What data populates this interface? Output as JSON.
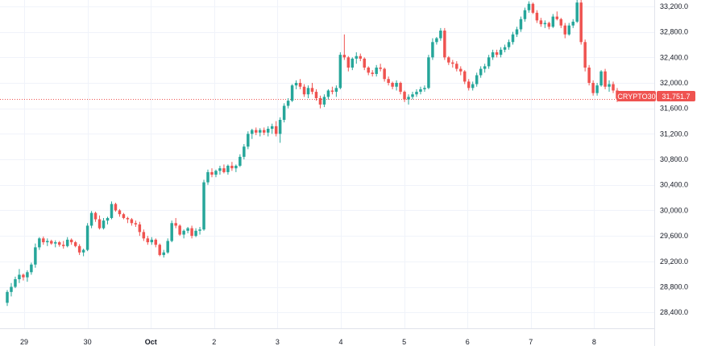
{
  "chart_data": {
    "type": "candlestick",
    "title": "",
    "xlabel": "",
    "ylabel": "",
    "ylim": [
      28150,
      33300
    ],
    "y_ticks": [
      "33,200.0",
      "32,800.0",
      "32,400.0",
      "32,000.0",
      "31,600.0",
      "31,200.0",
      "30,800.0",
      "30,400.0",
      "30,000.0",
      "29,600.0",
      "29,200.0",
      "28,800.0",
      "28,400.0"
    ],
    "y_tick_values": [
      33200,
      32800,
      32400,
      32000,
      31600,
      31200,
      30800,
      30400,
      30000,
      29600,
      29200,
      28800,
      28400
    ],
    "x_ticks": [
      "29",
      "30",
      "Oct",
      "2",
      "3",
      "4",
      "5",
      "6",
      "7",
      "8"
    ],
    "x_range": [
      0,
      9.9
    ],
    "grid": true,
    "colors": {
      "up": "#26a69a",
      "down": "#ef5350",
      "grid": "#f0f3fa",
      "last_price_line": "#ef5350"
    },
    "last_price": {
      "symbol": "CRYPTO30",
      "value": 31751.7,
      "label": "31,751.7"
    },
    "series": [
      {
        "ohlc": [
          [
            28550,
            28750,
            28500,
            28720
          ],
          [
            28720,
            28860,
            28650,
            28800
          ],
          [
            28800,
            28960,
            28780,
            28920
          ],
          [
            28920,
            29080,
            28860,
            28990
          ],
          [
            28990,
            29010,
            28900,
            28950
          ],
          [
            28950,
            29060,
            28880,
            29030
          ],
          [
            29030,
            29180,
            28990,
            29150
          ],
          [
            29150,
            29480,
            29100,
            29420
          ],
          [
            29420,
            29580,
            29380,
            29560
          ],
          [
            29560,
            29590,
            29460,
            29500
          ],
          [
            29500,
            29560,
            29440,
            29520
          ],
          [
            29520,
            29540,
            29460,
            29480
          ],
          [
            29480,
            29530,
            29420,
            29500
          ],
          [
            29500,
            29520,
            29430,
            29460
          ],
          [
            29460,
            29520,
            29400,
            29440
          ],
          [
            29440,
            29580,
            29420,
            29540
          ],
          [
            29540,
            29560,
            29460,
            29500
          ],
          [
            29500,
            29520,
            29420,
            29440
          ],
          [
            29440,
            29470,
            29300,
            29340
          ],
          [
            29340,
            29400,
            29280,
            29380
          ],
          [
            29380,
            29800,
            29360,
            29760
          ],
          [
            29760,
            29990,
            29720,
            29960
          ],
          [
            29960,
            29980,
            29820,
            29860
          ],
          [
            29860,
            29920,
            29700,
            29720
          ],
          [
            29720,
            29880,
            29700,
            29840
          ],
          [
            29840,
            29900,
            29780,
            29880
          ],
          [
            29880,
            30140,
            29860,
            30100
          ],
          [
            30100,
            30120,
            29980,
            30000
          ],
          [
            30000,
            30020,
            29900,
            29940
          ],
          [
            29940,
            29960,
            29860,
            29880
          ],
          [
            29880,
            29900,
            29800,
            29860
          ],
          [
            29860,
            29880,
            29760,
            29800
          ],
          [
            29800,
            29840,
            29740,
            29780
          ],
          [
            29780,
            29820,
            29600,
            29660
          ],
          [
            29660,
            29700,
            29520,
            29560
          ],
          [
            29560,
            29600,
            29460,
            29500
          ],
          [
            29500,
            29580,
            29460,
            29540
          ],
          [
            29540,
            29560,
            29420,
            29460
          ],
          [
            29460,
            29480,
            29280,
            29300
          ],
          [
            29300,
            29380,
            29260,
            29340
          ],
          [
            29340,
            29560,
            29320,
            29520
          ],
          [
            29520,
            29840,
            29500,
            29800
          ],
          [
            29800,
            29880,
            29720,
            29760
          ],
          [
            29760,
            29780,
            29600,
            29620
          ],
          [
            29620,
            29700,
            29560,
            29680
          ],
          [
            29680,
            29740,
            29640,
            29720
          ],
          [
            29720,
            29760,
            29560,
            29600
          ],
          [
            29600,
            29720,
            29580,
            29680
          ],
          [
            29680,
            29740,
            29620,
            29700
          ],
          [
            29700,
            30480,
            29680,
            30440
          ],
          [
            30440,
            30640,
            30400,
            30600
          ],
          [
            30600,
            30660,
            30520,
            30560
          ],
          [
            30560,
            30640,
            30520,
            30620
          ],
          [
            30620,
            30700,
            30560,
            30660
          ],
          [
            30660,
            30720,
            30580,
            30600
          ],
          [
            30600,
            30720,
            30560,
            30700
          ],
          [
            30700,
            30760,
            30620,
            30660
          ],
          [
            30660,
            30720,
            30600,
            30700
          ],
          [
            30700,
            30880,
            30680,
            30840
          ],
          [
            30840,
            31040,
            30800,
            31000
          ],
          [
            31000,
            31240,
            30960,
            31200
          ],
          [
            31200,
            31280,
            31120,
            31260
          ],
          [
            31260,
            31300,
            31180,
            31220
          ],
          [
            31220,
            31290,
            31160,
            31260
          ],
          [
            31260,
            31300,
            31180,
            31220
          ],
          [
            31220,
            31320,
            31160,
            31280
          ],
          [
            31280,
            31360,
            31200,
            31320
          ],
          [
            31320,
            31400,
            31160,
            31200
          ],
          [
            31200,
            31460,
            31060,
            31420
          ],
          [
            31420,
            31680,
            31380,
            31640
          ],
          [
            31640,
            31760,
            31600,
            31720
          ],
          [
            31720,
            31980,
            31700,
            31960
          ],
          [
            31960,
            32040,
            31900,
            32000
          ],
          [
            32000,
            32060,
            31900,
            31940
          ],
          [
            31940,
            31980,
            31780,
            31820
          ],
          [
            31820,
            31960,
            31760,
            31920
          ],
          [
            31920,
            32000,
            31820,
            31860
          ],
          [
            31860,
            31900,
            31720,
            31760
          ],
          [
            31760,
            31800,
            31600,
            31660
          ],
          [
            31660,
            31820,
            31620,
            31780
          ],
          [
            31780,
            31900,
            31740,
            31880
          ],
          [
            31880,
            31940,
            31820,
            31860
          ],
          [
            31860,
            31960,
            31780,
            31920
          ],
          [
            31920,
            32480,
            31900,
            32440
          ],
          [
            32440,
            32760,
            32360,
            32400
          ],
          [
            32400,
            32420,
            32180,
            32240
          ],
          [
            32240,
            32400,
            32200,
            32380
          ],
          [
            32380,
            32480,
            32300,
            32420
          ],
          [
            32420,
            32460,
            32340,
            32380
          ],
          [
            32380,
            32400,
            32200,
            32240
          ],
          [
            32240,
            32260,
            32120,
            32160
          ],
          [
            32160,
            32200,
            32100,
            32140
          ],
          [
            32140,
            32280,
            32100,
            32240
          ],
          [
            32240,
            32300,
            32180,
            32220
          ],
          [
            32220,
            32240,
            32020,
            32060
          ],
          [
            32060,
            32100,
            31960,
            32000
          ],
          [
            32000,
            32020,
            31900,
            31940
          ],
          [
            31940,
            32040,
            31880,
            32000
          ],
          [
            32000,
            32020,
            31820,
            31860
          ],
          [
            31860,
            31880,
            31700,
            31740
          ],
          [
            31740,
            31820,
            31660,
            31780
          ],
          [
            31780,
            31860,
            31740,
            31820
          ],
          [
            31820,
            31900,
            31780,
            31860
          ],
          [
            31860,
            31940,
            31820,
            31900
          ],
          [
            31900,
            31960,
            31860,
            31920
          ],
          [
            31920,
            32440,
            31900,
            32400
          ],
          [
            32400,
            32700,
            32360,
            32640
          ],
          [
            32640,
            32720,
            32600,
            32700
          ],
          [
            32700,
            32860,
            32660,
            32820
          ],
          [
            32820,
            32860,
            32360,
            32400
          ],
          [
            32400,
            32420,
            32280,
            32320
          ],
          [
            32320,
            32360,
            32240,
            32300
          ],
          [
            32300,
            32340,
            32180,
            32220
          ],
          [
            32220,
            32260,
            32120,
            32180
          ],
          [
            32180,
            32200,
            31980,
            32020
          ],
          [
            32020,
            32060,
            31880,
            31920
          ],
          [
            31920,
            32020,
            31880,
            31980
          ],
          [
            31980,
            32160,
            31940,
            32120
          ],
          [
            32120,
            32260,
            32080,
            32220
          ],
          [
            32220,
            32300,
            32160,
            32260
          ],
          [
            32260,
            32440,
            32220,
            32400
          ],
          [
            32400,
            32520,
            32360,
            32480
          ],
          [
            32480,
            32520,
            32400,
            32440
          ],
          [
            32440,
            32560,
            32400,
            32520
          ],
          [
            32520,
            32600,
            32480,
            32560
          ],
          [
            32560,
            32680,
            32520,
            32640
          ],
          [
            32640,
            32800,
            32600,
            32760
          ],
          [
            32760,
            32880,
            32720,
            32840
          ],
          [
            32840,
            33040,
            32800,
            33000
          ],
          [
            33000,
            33180,
            32960,
            33140
          ],
          [
            33140,
            33280,
            33100,
            33240
          ],
          [
            33240,
            33260,
            33080,
            33100
          ],
          [
            33100,
            33140,
            32940,
            32980
          ],
          [
            32980,
            33020,
            32880,
            32920
          ],
          [
            32920,
            32980,
            32860,
            32940
          ],
          [
            32940,
            32960,
            32840,
            32880
          ],
          [
            32880,
            33080,
            32860,
            33040
          ],
          [
            33040,
            33120,
            32980,
            33000
          ],
          [
            33000,
            33020,
            32860,
            32900
          ],
          [
            32900,
            32940,
            32700,
            32760
          ],
          [
            32760,
            32940,
            32740,
            32900
          ],
          [
            32900,
            33000,
            32860,
            32960
          ],
          [
            32960,
            33300,
            32940,
            33260
          ],
          [
            33260,
            33300,
            32600,
            32640
          ],
          [
            32640,
            32680,
            32180,
            32240
          ],
          [
            32240,
            32280,
            31960,
            32000
          ],
          [
            32000,
            32040,
            31800,
            31840
          ],
          [
            31840,
            32000,
            31800,
            31960
          ],
          [
            31960,
            32200,
            31940,
            32180
          ],
          [
            32180,
            32220,
            31900,
            31940
          ],
          [
            31940,
            32040,
            31860,
            31980
          ],
          [
            31980,
            32020,
            31840,
            31880
          ],
          [
            31880,
            31920,
            31700,
            31752
          ]
        ]
      }
    ]
  }
}
